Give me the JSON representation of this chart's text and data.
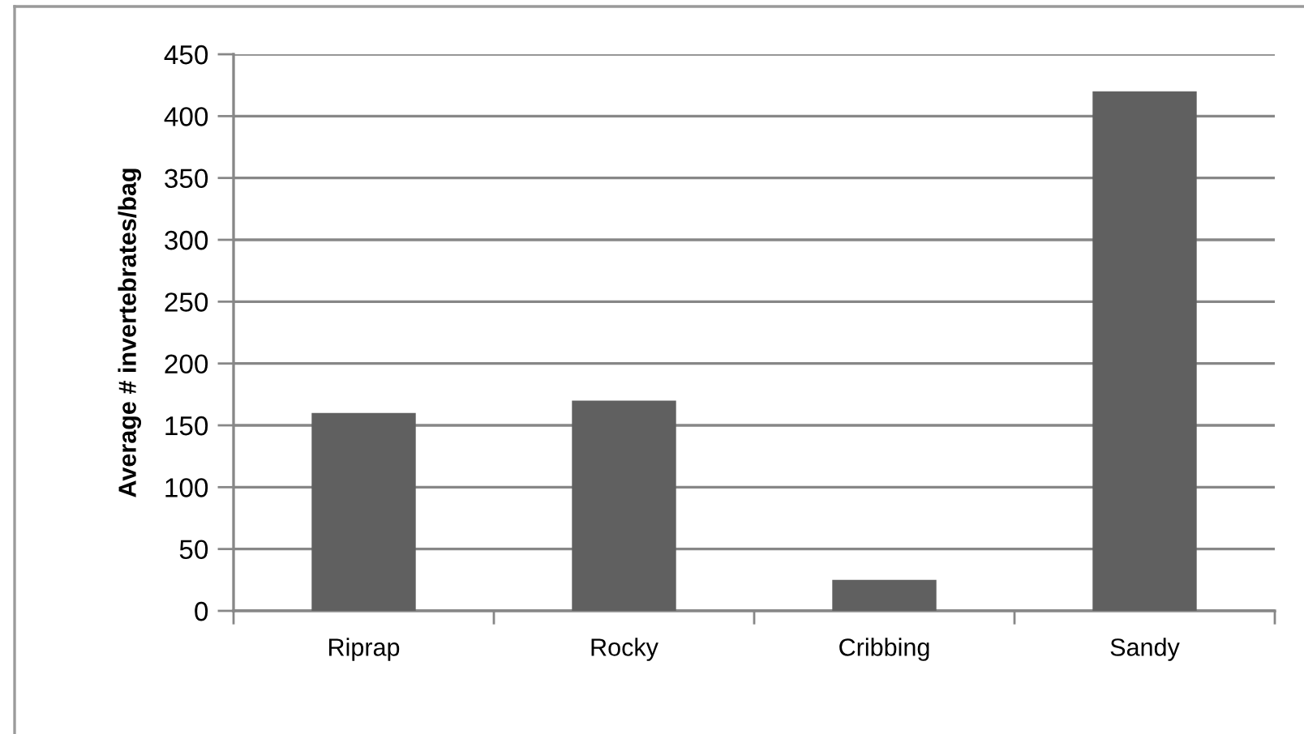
{
  "chart_data": {
    "type": "bar",
    "ylabel": "Average # invertebrates/bag",
    "categories": [
      "Riprap",
      "Rocky",
      "Cribbing",
      "Sandy"
    ],
    "values": [
      160,
      170,
      25,
      420
    ],
    "color": "#606060",
    "ylim": [
      0,
      450
    ],
    "yticks": [
      0,
      50,
      100,
      150,
      200,
      250,
      300,
      350,
      400,
      450
    ],
    "grid": "y"
  }
}
